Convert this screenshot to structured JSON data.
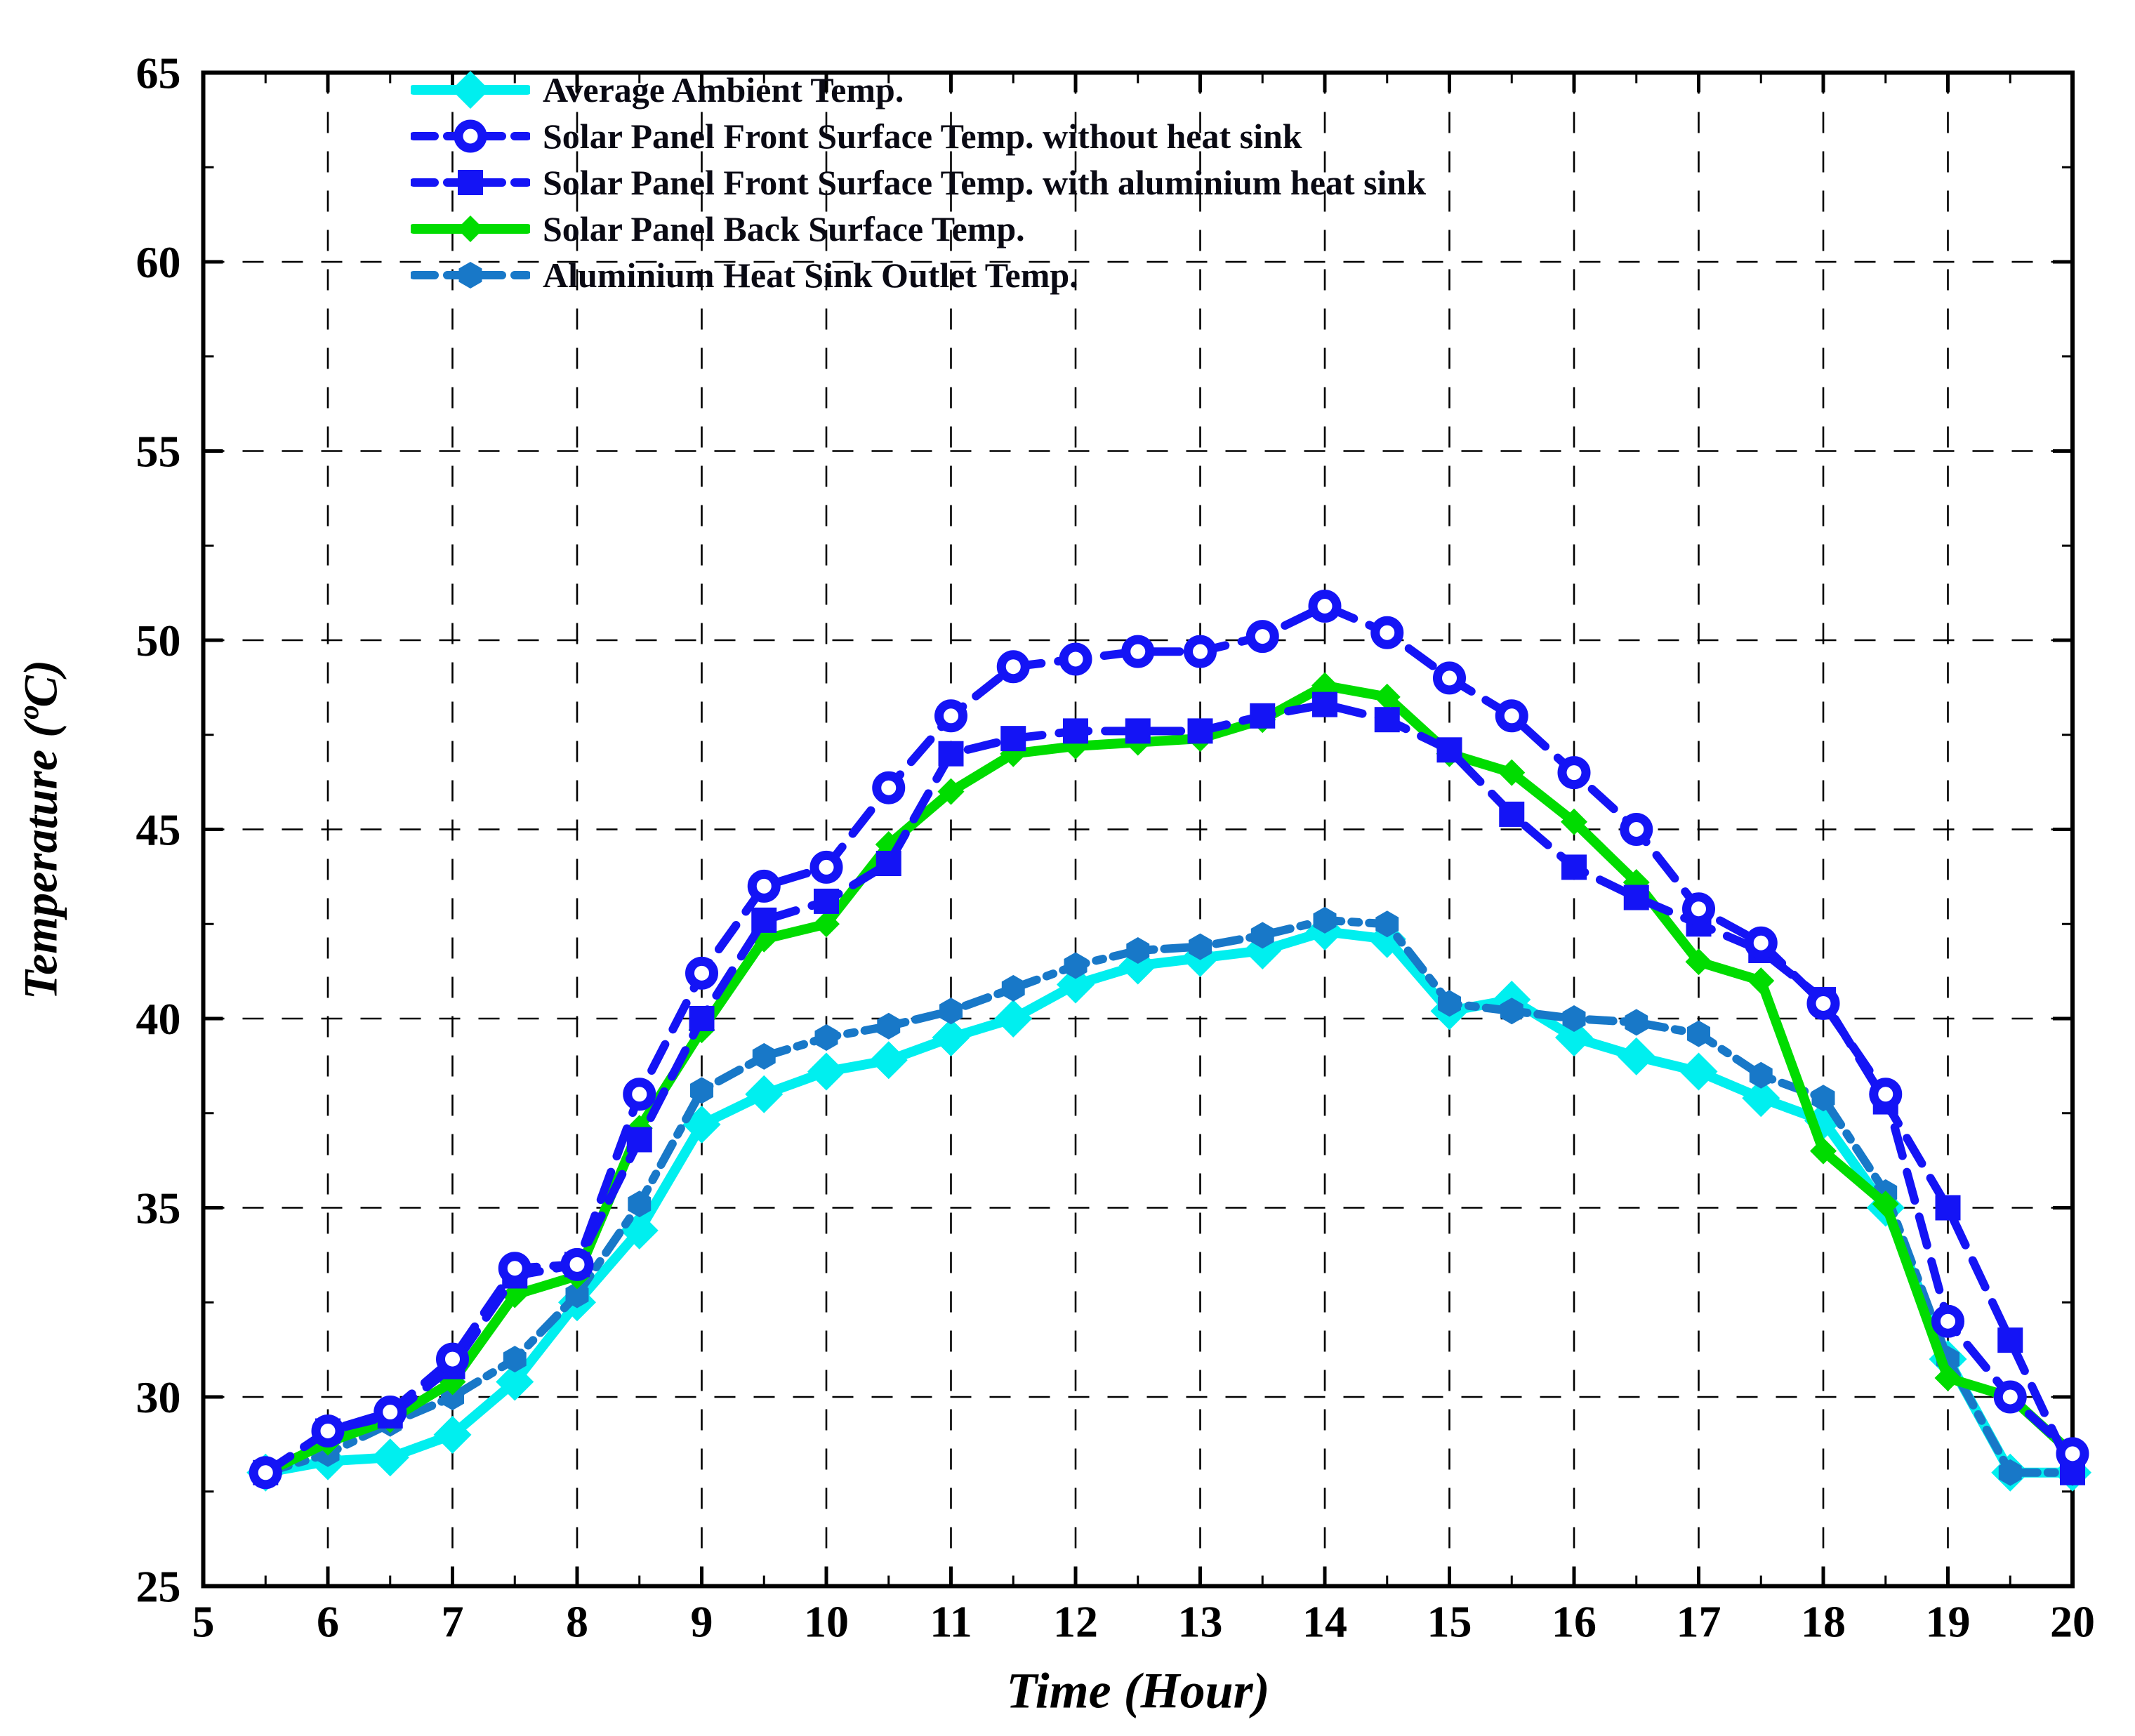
{
  "chart_data": {
    "type": "line",
    "title": "",
    "xlabel": "Time (Hour)",
    "ylabel": "Temperature (ºC)",
    "xlim": [
      5,
      20
    ],
    "ylim": [
      25,
      65
    ],
    "x_ticks": [
      5,
      6,
      7,
      8,
      9,
      10,
      11,
      12,
      13,
      14,
      15,
      16,
      17,
      18,
      19,
      20
    ],
    "y_ticks": [
      25,
      30,
      35,
      40,
      45,
      50,
      55,
      60,
      65
    ],
    "grid": "dashed",
    "grid_color": "#000000",
    "legend_position": "top-left",
    "x": [
      5.5,
      6,
      6.5,
      7,
      7.5,
      8,
      8.5,
      9,
      9.5,
      10,
      10.5,
      11,
      11.5,
      12,
      12.5,
      13,
      13.5,
      14,
      14.5,
      15,
      15.5,
      16,
      16.5,
      17,
      17.5,
      18,
      18.5,
      19,
      19.5,
      20
    ],
    "series": [
      {
        "name": "Average Ambient Temp.",
        "color": "#00EFEF",
        "line_style": "solid",
        "marker": "diamond",
        "values": [
          28.0,
          28.3,
          28.4,
          29.0,
          30.4,
          32.5,
          34.4,
          37.2,
          38.0,
          38.6,
          38.9,
          39.5,
          40.0,
          40.9,
          41.4,
          41.6,
          41.8,
          42.3,
          42.1,
          40.2,
          40.5,
          39.5,
          39.0,
          38.6,
          37.9,
          37.3,
          35.0,
          31.0,
          28.0,
          28.0
        ]
      },
      {
        "name": "Solar Panel Front Surface Temp. without heat sink",
        "color": "#1414F5",
        "line_style": "dashed",
        "marker": "circle-open",
        "values": [
          28.0,
          29.1,
          29.6,
          31.0,
          33.4,
          33.5,
          38.0,
          41.2,
          43.5,
          44.0,
          46.1,
          48.0,
          49.3,
          49.5,
          49.7,
          49.7,
          50.1,
          50.9,
          50.2,
          49.0,
          48.0,
          46.5,
          45.0,
          42.9,
          42.0,
          40.4,
          38.0,
          32.0,
          30.0,
          28.5
        ]
      },
      {
        "name": "Solar Panel Front Surface Temp. with aluminium heat sink",
        "color": "#1414F5",
        "line_style": "dashed",
        "marker": "square",
        "values": [
          28.0,
          29.1,
          29.5,
          30.8,
          33.2,
          33.5,
          36.8,
          40.0,
          42.6,
          43.1,
          44.1,
          47.0,
          47.4,
          47.6,
          47.6,
          47.6,
          48.0,
          48.3,
          47.9,
          47.1,
          45.4,
          44.0,
          43.2,
          42.5,
          41.8,
          40.5,
          37.8,
          35.0,
          31.5,
          28.0
        ]
      },
      {
        "name": "Solar Panel Back Surface Temp.",
        "color": "#00DC00",
        "line_style": "solid",
        "marker": "small-diamond",
        "values": [
          28.0,
          28.8,
          29.4,
          30.4,
          32.7,
          33.2,
          37.1,
          39.7,
          42.1,
          42.5,
          44.6,
          46.0,
          47.0,
          47.2,
          47.3,
          47.4,
          47.9,
          48.8,
          48.5,
          47.0,
          46.5,
          45.2,
          43.6,
          41.5,
          41.0,
          36.5,
          35.1,
          30.5,
          30.0,
          28.5
        ]
      },
      {
        "name": "Aluminium Heat Sink Outlet Temp.",
        "color": "#1878C8",
        "line_style": "dash-dot",
        "marker": "hexagon",
        "values": [
          28.0,
          28.5,
          29.3,
          30.0,
          31.0,
          32.7,
          35.1,
          38.1,
          39.0,
          39.5,
          39.8,
          40.2,
          40.8,
          41.4,
          41.8,
          41.9,
          42.2,
          42.6,
          42.5,
          40.4,
          40.2,
          40.0,
          39.9,
          39.6,
          38.5,
          37.9,
          35.4,
          31.0,
          28.0,
          28.0
        ]
      }
    ]
  }
}
